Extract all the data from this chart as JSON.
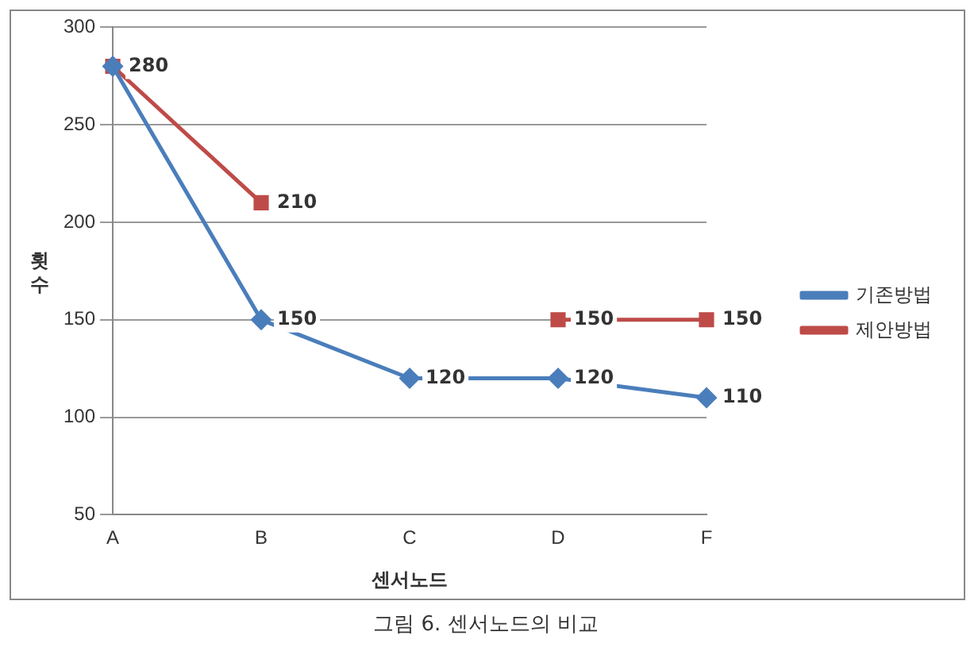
{
  "chart_data": {
    "type": "line",
    "xlabel": "센서노드",
    "ylabel": "횟수",
    "categories": [
      "A",
      "B",
      "C",
      "D",
      "F"
    ],
    "series": [
      {
        "name": "기존방법",
        "color": "#4a7ebb",
        "marker": "diamond",
        "values": [
          280,
          150,
          120,
          120,
          110
        ],
        "value_labels": [
          null,
          "150",
          "120",
          "120",
          "110"
        ]
      },
      {
        "name": "제안방법",
        "color": "#be4b48",
        "marker": "square",
        "values": [
          280,
          210,
          null,
          150,
          150
        ],
        "value_labels": [
          "280",
          "210",
          null,
          "150",
          "150"
        ]
      }
    ],
    "ylim": [
      50,
      300
    ],
    "yticks": [
      50,
      100,
      150,
      200,
      250,
      300
    ],
    "grid": "y",
    "legend": "right",
    "line_style": "solid",
    "annotations": [
      "그림 6. 센서노드의 비교"
    ]
  }
}
